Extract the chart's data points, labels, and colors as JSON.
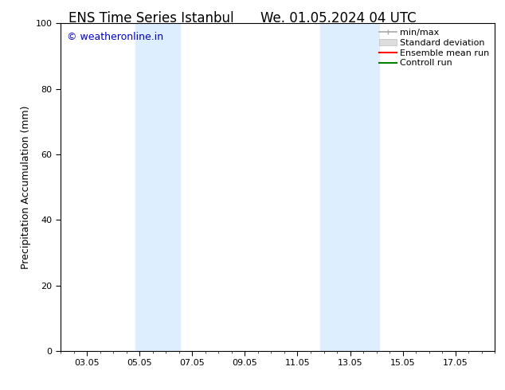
{
  "title_left": "ENS Time Series Istanbul",
  "title_right": "We. 01.05.2024 04 UTC",
  "ylabel": "Precipitation Accumulation (mm)",
  "ylim": [
    0,
    100
  ],
  "yticks": [
    0,
    20,
    40,
    60,
    80,
    100
  ],
  "xtick_labels": [
    "03.05",
    "05.05",
    "07.05",
    "09.05",
    "11.05",
    "13.05",
    "15.05",
    "17.05"
  ],
  "xtick_positions": [
    2,
    4,
    6,
    8,
    10,
    12,
    14,
    16
  ],
  "xlim": [
    1,
    17.5
  ],
  "blue_bands": [
    {
      "x_start": 3.85,
      "x_end": 5.55
    },
    {
      "x_start": 10.85,
      "x_end": 13.1
    }
  ],
  "band_color": "#ddeeff",
  "watermark_text": "© weatheronline.in",
  "watermark_color": "#0000cc",
  "bg_color": "#ffffff",
  "plot_bg_color": "#ffffff",
  "legend_items": [
    {
      "label": "min/max",
      "color": "#aaaaaa",
      "lw": 1.2
    },
    {
      "label": "Standard deviation",
      "color": "#cccccc",
      "lw": 6
    },
    {
      "label": "Ensemble mean run",
      "color": "#ff0000",
      "lw": 1.5
    },
    {
      "label": "Controll run",
      "color": "#008000",
      "lw": 1.5
    }
  ],
  "title_fontsize": 12,
  "ylabel_fontsize": 9,
  "tick_fontsize": 8,
  "watermark_fontsize": 9,
  "legend_fontsize": 8
}
